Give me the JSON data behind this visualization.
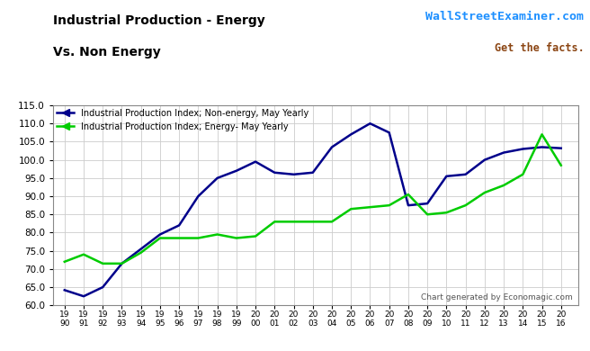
{
  "years": [
    1990,
    1991,
    1992,
    1993,
    1994,
    1995,
    1996,
    1997,
    1998,
    1999,
    2000,
    2001,
    2002,
    2003,
    2004,
    2005,
    2006,
    2007,
    2008,
    2009,
    2010,
    2011,
    2012,
    2013,
    2014,
    2015,
    2016
  ],
  "non_energy": [
    64.2,
    62.5,
    65.0,
    71.5,
    75.5,
    79.5,
    82.0,
    90.0,
    95.0,
    97.0,
    99.5,
    96.5,
    96.0,
    96.5,
    103.5,
    107.0,
    110.0,
    107.5,
    87.5,
    88.0,
    95.5,
    96.0,
    100.0,
    102.0,
    103.0,
    103.5,
    103.2
  ],
  "energy": [
    72.0,
    74.0,
    71.5,
    71.5,
    74.5,
    78.5,
    78.5,
    78.5,
    79.5,
    78.5,
    79.0,
    83.0,
    83.0,
    83.0,
    83.0,
    86.5,
    87.0,
    87.5,
    90.5,
    85.0,
    85.5,
    87.5,
    91.0,
    93.0,
    96.0,
    107.0,
    98.5
  ],
  "title_line1": "Industrial Production - Energy",
  "title_line2": "Vs. Non Energy",
  "watermark_line1": "WallStreetExaminer.com",
  "watermark_line2": "Get the facts.",
  "legend1": "Industrial Production Index; Non-energy, May Yearly",
  "legend2": "Industrial Production Index; Energy- May Yearly",
  "footer": "Chart generated by Economagic.com",
  "ylim": [
    60.0,
    115.0
  ],
  "yticks": [
    60.0,
    65.0,
    70.0,
    75.0,
    80.0,
    85.0,
    90.0,
    95.0,
    100.0,
    105.0,
    110.0,
    115.0
  ],
  "non_energy_color": "#00008B",
  "energy_color": "#00CC00",
  "background_color": "#FFFFFF",
  "grid_color": "#CCCCCC",
  "watermark_color1": "#1E90FF",
  "watermark_color2": "#8B4513"
}
